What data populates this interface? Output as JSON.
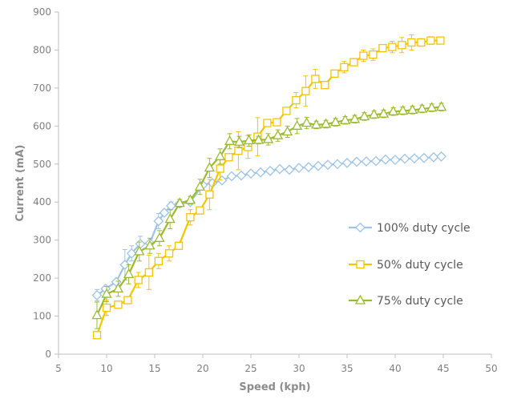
{
  "chart_data": {
    "type": "line",
    "xlabel": "Speed (kph)",
    "ylabel": "Current (mA)",
    "xlim": [
      5,
      50
    ],
    "ylim": [
      0,
      900
    ],
    "x_ticks": [
      5,
      10,
      15,
      20,
      25,
      30,
      35,
      40,
      45,
      50
    ],
    "y_ticks": [
      0,
      100,
      200,
      300,
      400,
      500,
      600,
      700,
      800,
      900
    ],
    "grid": false,
    "legend_position": "right",
    "series": [
      {
        "name": "100% duty cycle",
        "color": "#9dc3e6",
        "marker": "diamond",
        "x": [
          9.0,
          9.9,
          11.0,
          11.9,
          12.6,
          13.5,
          14.5,
          15.4,
          16.0,
          16.7,
          17.6,
          18.7,
          20.0,
          21.0,
          22.0,
          23.0,
          24.0,
          25.0,
          26.0,
          27.0,
          28.0,
          29.0,
          30.0,
          31.0,
          32.0,
          33.0,
          34.0,
          35.0,
          36.0,
          37.0,
          38.0,
          39.0,
          40.0,
          41.0,
          42.0,
          43.0,
          44.0,
          44.8
        ],
        "y": [
          155,
          172,
          190,
          235,
          265,
          290,
          292,
          350,
          372,
          390,
          396,
          400,
          445,
          450,
          457,
          468,
          470,
          475,
          478,
          482,
          487,
          485,
          490,
          492,
          495,
          498,
          500,
          503,
          506,
          507,
          508,
          512,
          511,
          514,
          515,
          516,
          518,
          520
        ],
        "err": [
          15,
          0,
          0,
          40,
          20,
          20,
          0,
          20,
          0,
          10,
          0,
          0,
          0,
          0,
          0,
          0,
          0,
          0,
          0,
          0,
          0,
          0,
          0,
          0,
          0,
          0,
          0,
          0,
          0,
          0,
          0,
          0,
          0,
          0,
          0,
          0,
          0,
          0
        ]
      },
      {
        "name": "50% duty cycle",
        "color": "#f5c400",
        "marker": "square",
        "x": [
          9.0,
          10.0,
          11.2,
          12.2,
          13.3,
          14.4,
          15.4,
          16.5,
          17.5,
          18.7,
          19.7,
          20.7,
          21.8,
          22.7,
          23.7,
          24.7,
          25.7,
          26.7,
          27.7,
          28.7,
          29.7,
          30.7,
          31.7,
          32.7,
          33.7,
          34.7,
          35.7,
          36.7,
          37.7,
          38.7,
          39.7,
          40.7,
          41.7,
          42.7,
          43.7,
          44.7
        ],
        "y": [
          50,
          122,
          130,
          142,
          195,
          215,
          245,
          265,
          285,
          360,
          378,
          420,
          488,
          518,
          535,
          545,
          572,
          608,
          610,
          640,
          668,
          692,
          724,
          708,
          738,
          755,
          768,
          785,
          788,
          805,
          808,
          813,
          820,
          820,
          825,
          825
        ],
        "err": [
          10,
          20,
          0,
          0,
          20,
          45,
          20,
          20,
          0,
          20,
          0,
          40,
          30,
          0,
          50,
          30,
          50,
          0,
          0,
          0,
          20,
          40,
          25,
          0,
          0,
          15,
          0,
          15,
          15,
          0,
          15,
          20,
          20,
          10,
          10,
          0
        ]
      },
      {
        "name": "75% duty cycle",
        "color": "#9bbb2f",
        "marker": "triangle",
        "x": [
          9.0,
          10.0,
          11.2,
          12.3,
          13.4,
          14.5,
          15.5,
          16.6,
          17.6,
          18.7,
          19.7,
          20.7,
          21.8,
          22.8,
          23.8,
          24.8,
          25.8,
          26.8,
          27.8,
          28.8,
          29.8,
          30.8,
          31.8,
          32.8,
          33.8,
          34.8,
          35.8,
          36.8,
          37.8,
          38.8,
          39.8,
          40.8,
          41.8,
          42.8,
          43.8,
          44.8
        ],
        "y": [
          102,
          158,
          172,
          210,
          270,
          285,
          305,
          355,
          397,
          405,
          440,
          490,
          520,
          560,
          558,
          562,
          563,
          565,
          575,
          585,
          600,
          608,
          603,
          605,
          610,
          615,
          618,
          625,
          630,
          632,
          638,
          640,
          642,
          645,
          648,
          650
        ],
        "err": [
          35,
          20,
          20,
          25,
          25,
          20,
          20,
          25,
          10,
          10,
          20,
          25,
          20,
          20,
          15,
          15,
          10,
          15,
          15,
          15,
          20,
          15,
          10,
          10,
          10,
          10,
          10,
          10,
          10,
          10,
          10,
          10,
          10,
          10,
          10,
          10
        ]
      }
    ]
  }
}
